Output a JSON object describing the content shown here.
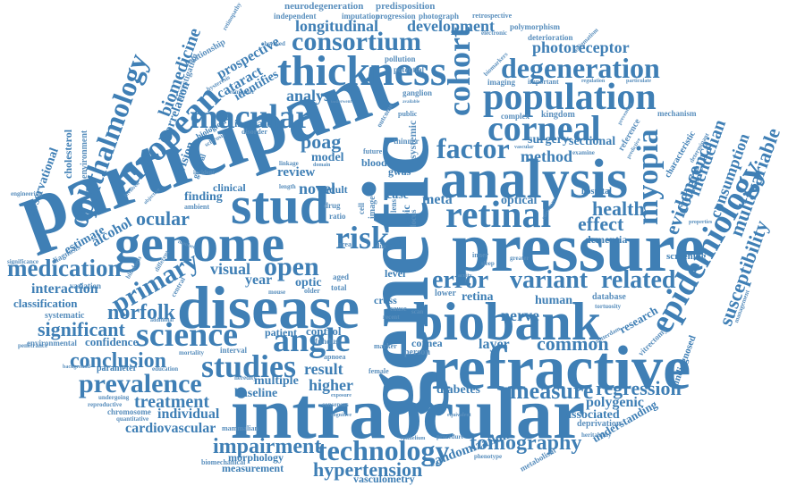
{
  "palette": {
    "primary": "#3f7fb5",
    "secondary": "#5a8fbd",
    "background": "#ffffff"
  },
  "words": {
    "participant": "participant",
    "genetic": "genetic",
    "pressure": "pressure",
    "intraocular": "intraocular",
    "refractive": "refractive",
    "disease": "disease",
    "biobank": "biobank",
    "analysis": "analysis",
    "genome": "genome",
    "stud": "stud",
    "thickness": "thickness",
    "population": "population",
    "retinal": "retinal",
    "epidemiology": "epidemiology",
    "european": "european",
    "ophthalmology": "ophthalmology",
    "corneal": "corneal",
    "degeneration": "degeneration",
    "macular": "macular",
    "consortium": "consortium",
    "cohort": "cohort",
    "myopia": "myopia",
    "science": "science",
    "studies": "studies",
    "angle": "angle",
    "prevalence": "prevalence",
    "medication": "medication",
    "primary": "primary",
    "open": "open",
    "risk": "risk",
    "error": "error",
    "variant": "variant",
    "related": "related",
    "technology": "technology",
    "impairment": "impairment",
    "measure": "measure",
    "regression": "regression",
    "tomography": "tomography",
    "hypertension": "hypertension",
    "conclusion": "conclusion",
    "significant": "significant",
    "norfolk": "norfolk",
    "factor": "factor",
    "photoreceptor": "photoreceptor",
    "health": "health",
    "effect": "effect",
    "evidence": "evidence",
    "susceptibility": "susceptibility",
    "multivariable": "multivariable",
    "mendelian": "mendelian",
    "coherence": "coherence",
    "consumption": "consumption",
    "longitudinal": "longitudinal",
    "development": "development",
    "neurodegeneration": "neurodegeneration",
    "predisposition": "predisposition",
    "retrospective": "retrospective",
    "independent": "independent",
    "imputation": "imputation",
    "progression": "progression",
    "photograph": "photograph",
    "polymorphism": "polymorphism",
    "deterioration": "deterioration",
    "biomedicine": "biomedicine",
    "investigation": "investigation",
    "relationship": "relationship",
    "prospective": "prospective",
    "cataract": "cataract",
    "identifies": "identifies",
    "correlation": "correlation",
    "environment": "environment",
    "cholesterol": "cholesterol",
    "observational": "observational",
    "alcohol": "alcohol",
    "estimate": "estimate",
    "diagnosis": "diagnosis",
    "ocular": "ocular",
    "interaction": "interaction",
    "classification": "classification",
    "systematic": "systematic",
    "environmental": "environmental",
    "confidence": "confidence",
    "treatment": "treatment",
    "individual": "individual",
    "cardiovascular": "cardiovascular",
    "morphology": "morphology",
    "measurement": "measurement",
    "vasculometry": "vasculometry",
    "randomization": "randomization",
    "understanding": "understanding",
    "polygenic": "polygenic",
    "associated": "associated",
    "deprivation": "deprivation",
    "diabetes": "diabetes",
    "common": "common",
    "layer": "layer",
    "nerve": "nerve",
    "human": "human",
    "database": "database",
    "tortuosity": "tortuosity",
    "research": "research",
    "undiagnosed": "undiagnosed",
    "screening": "screening",
    "dementia": "dementia",
    "optical": "optical",
    "hospital": "hospital",
    "method": "method",
    "surgery": "surgery",
    "sectional": "sectional",
    "kingdom": "kingdom",
    "mechanism": "mechanism",
    "analyse": "analyse",
    "poag": "poag",
    "review": "review",
    "model": "model",
    "novel": "novel",
    "result": "result",
    "higher": "higher",
    "multiple": "multiple",
    "baseline": "baseline",
    "patient": "patient",
    "control": "control",
    "visual": "visual",
    "year": "year",
    "optic": "optic",
    "meta": "meta",
    "case": "case",
    "retina": "retina",
    "lower": "lower",
    "cross": "cross",
    "level": "level",
    "cornea": "cornea",
    "person": "person",
    "clinical": "clinical",
    "finding": "finding",
    "vision": "vision",
    "increase": "increase",
    "general": "general",
    "biological": "biological",
    "imaging": "imaging",
    "important": "important",
    "complex": "complex",
    "ganglion": "ganglion",
    "systemic": "systemic",
    "potential": "potential",
    "pollution": "pollution",
    "adult": "adult",
    "thinner": "thinner",
    "public": "public",
    "reference": "reference",
    "characteristic": "characteristic",
    "variation": "variation",
    "significance": "significance",
    "parameter": "parameter",
    "background": "background",
    "education": "education",
    "undergoing": "undergoing",
    "chromosome": "chromosome",
    "quantitative": "quantitative",
    "heredity": "heredity",
    "consensus": "consensus",
    "mammalian": "mammalian",
    "biomechanical": "biomechanical",
    "epithelium": "epithelium",
    "phenotype": "phenotype",
    "procedure": "procedure",
    "metabolism": "metabolism",
    "heritability": "heritability",
    "rotterdam": "rotterdam",
    "vitrectomy": "vitrectomy",
    "management": "management",
    "properties": "properties",
    "engineering": "engineering",
    "blindness": "blindness",
    "greater": "greater",
    "inner": "inner",
    "sleep": "sleep",
    "apnoea": "apnoea",
    "female": "female",
    "marker": "marker",
    "fundus": "fundus",
    "interval": "interval",
    "mortality": "mortality",
    "additional": "additional",
    "penetrance": "penetrance",
    "reproductive": "reproductive",
    "central": "central",
    "mouse": "mouse",
    "older": "older",
    "total": "total",
    "aged": "aged",
    "trait": "trait",
    "disc": "disc",
    "area": "area",
    "drug": "drug",
    "ratio": "ratio",
    "cell": "cell",
    "image": "image",
    "gwas": "gwas",
    "blood": "blood",
    "future": "future",
    "lens": "lens",
    "locus": "locus",
    "epic": "epic",
    "cause": "cause",
    "recent": "recent",
    "scan": "scan",
    "electronic": "electronic",
    "regulation": "regulation",
    "particulate": "particulate",
    "astigmatism": "astigmatism",
    "biomarkers": "biomarkers",
    "available": "available",
    "underwent": "underwent",
    "outcome": "outcome",
    "observed": "observed",
    "computer": "computer",
    "disorder": "disorder",
    "sclerosis": "sclerosis",
    "ambient": "ambient",
    "incident": "incident",
    "involved": "involved",
    "length": "length",
    "linkage": "linkage",
    "domain": "domain",
    "hysteresis": "hysteresis",
    "retinopathy": "retinopathy",
    "objective": "objective",
    "vascular": "vascular",
    "prevention": "prevention",
    "examine": "examine",
    "determinant": "determinant",
    "predictive": "predictive",
    "curvature": "curvature",
    "different": "different",
    "number": "number",
    "exposure": "exposure",
    "cognitive": "cognitive",
    "equivalent": "equivalent",
    "acuity": "acuity"
  }
}
